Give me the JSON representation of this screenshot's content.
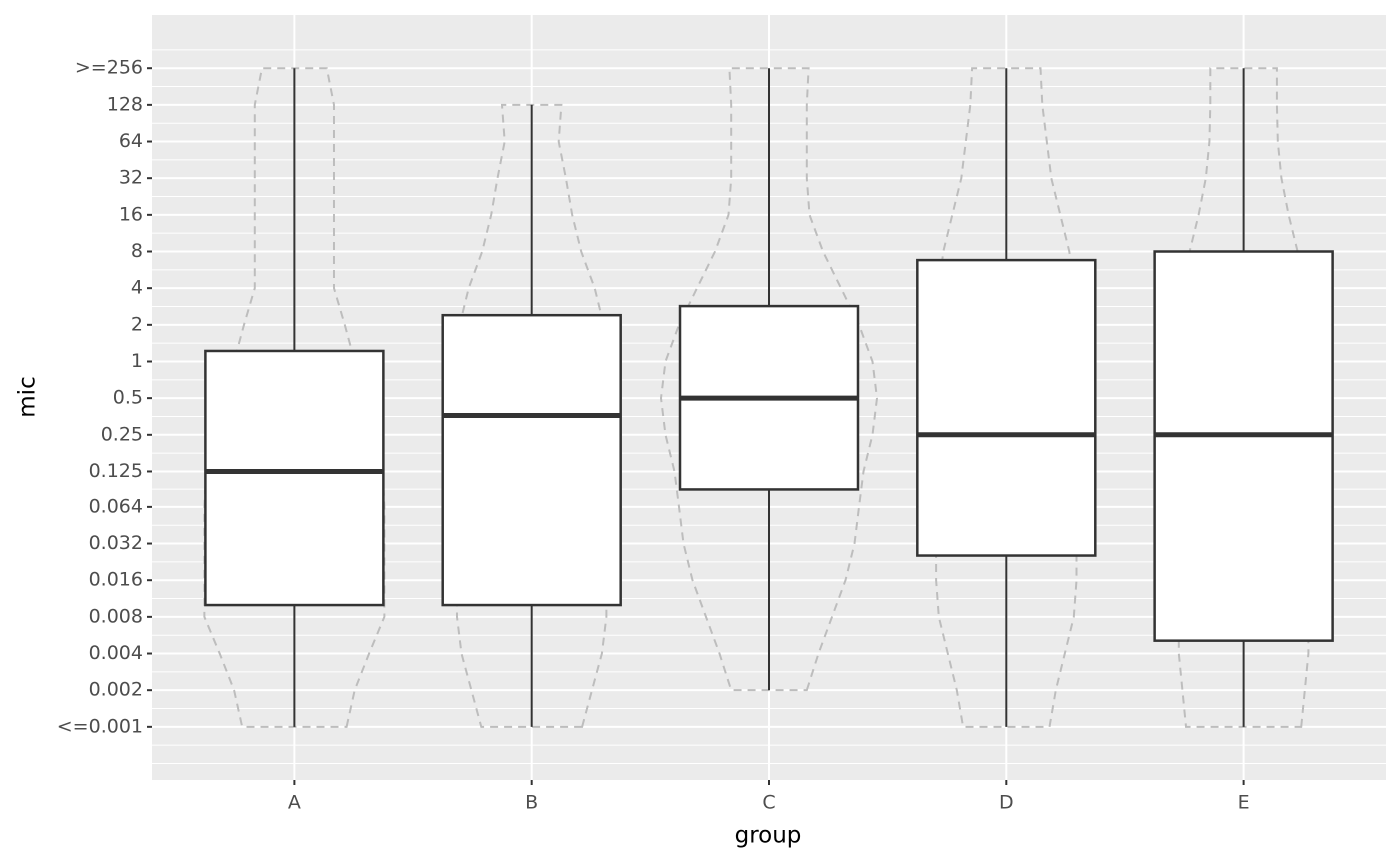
{
  "chart_data": {
    "type": "boxplot",
    "x_label": "group",
    "y_label": "mic",
    "log_scale": "y",
    "log_base": 2,
    "grid": true,
    "categories": [
      "A",
      "B",
      "C",
      "D",
      "E"
    ],
    "boxes": [
      {
        "low": 0.001,
        "q1": 0.01,
        "median": 0.125,
        "q3": 1.22,
        "high": 256
      },
      {
        "low": 0.001,
        "q1": 0.01,
        "median": 0.36,
        "q3": 2.4,
        "high": 128
      },
      {
        "low": 0.002,
        "q1": 0.089,
        "median": 0.5,
        "q3": 2.85,
        "high": 256
      },
      {
        "low": 0.001,
        "q1": 0.0255,
        "median": 0.25,
        "q3": 6.8,
        "high": 256
      },
      {
        "low": 0.001,
        "q1": 0.0051,
        "median": 0.25,
        "q3": 8,
        "high": 256
      }
    ],
    "violin_density": [
      [
        0.58,
        0.67,
        0.83,
        1,
        1,
        1,
        1,
        0.98,
        0.87,
        0.78,
        0.67,
        0.56,
        0.44,
        0.44,
        0.44,
        0.44,
        0.44,
        0.44,
        0.36
      ],
      [
        0.56,
        0.67,
        0.78,
        0.83,
        0.83,
        0.83,
        0.83,
        0.83,
        0.83,
        0.83,
        0.83,
        0.8,
        0.7,
        0.55,
        0.45,
        0.38,
        0.3,
        0.33,
        null
      ],
      [
        null,
        0.42,
        0.55,
        0.7,
        0.85,
        0.95,
        1.0,
        1.05,
        1.15,
        1.2,
        1.15,
        1.0,
        0.8,
        0.6,
        0.45,
        0.42,
        0.42,
        0.42,
        0.44
      ],
      [
        0.48,
        0.55,
        0.65,
        0.75,
        0.78,
        0.78,
        0.78,
        0.78,
        0.78,
        0.78,
        0.78,
        0.78,
        0.75,
        0.7,
        0.6,
        0.5,
        0.45,
        0.4,
        0.38
      ],
      [
        0.64,
        0.68,
        0.72,
        0.72,
        0.7,
        0.68,
        0.65,
        0.65,
        0.65,
        0.65,
        0.65,
        0.65,
        0.65,
        0.6,
        0.5,
        0.42,
        0.38,
        0.37,
        0.37
      ]
    ],
    "box_color": "#333333",
    "violin_color": "#bdbdbd",
    "panel_color": "#ebebeb",
    "ylim": [
      0.000366,
      700
    ],
    "yticks": [
      {
        "value": 0.001,
        "label": "<=0.001"
      },
      0.002,
      0.004,
      0.008,
      0.016,
      0.032,
      0.064,
      0.125,
      0.25,
      0.5,
      1,
      2,
      4,
      8,
      16,
      32,
      64,
      128,
      {
        "value": 256,
        "label": ">=256"
      }
    ]
  }
}
